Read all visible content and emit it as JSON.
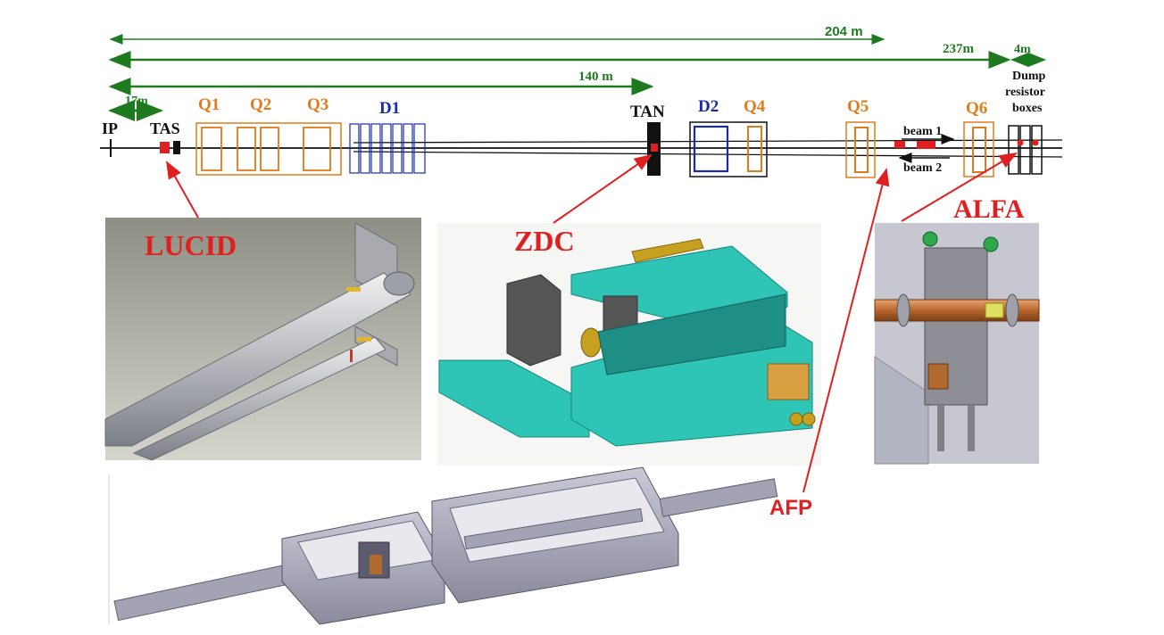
{
  "distances": {
    "d204": "204 m",
    "d237": "237m",
    "d4": "4m",
    "d140": "140 m",
    "d17": "17m"
  },
  "beamline": {
    "ip": "IP",
    "tas": "TAS",
    "q1": "Q1",
    "q2": "Q2",
    "q3": "Q3",
    "d1": "D1",
    "tan": "TAN",
    "d2": "D2",
    "q4": "Q4",
    "q5": "Q5",
    "beam1": "beam 1",
    "beam2": "beam 2",
    "q6": "Q6",
    "dump1": "Dump",
    "dump2": "resistor",
    "dump3": "boxes"
  },
  "detectors": {
    "lucid": "LUCID",
    "zdc": "ZDC",
    "alfa": "ALFA",
    "afp": "AFP"
  },
  "colors": {
    "green": "#1e7a1e",
    "orange": "#e07a1a",
    "blue": "#1a2ab0",
    "red": "#e02020",
    "cyan": "#2ec4b6"
  }
}
